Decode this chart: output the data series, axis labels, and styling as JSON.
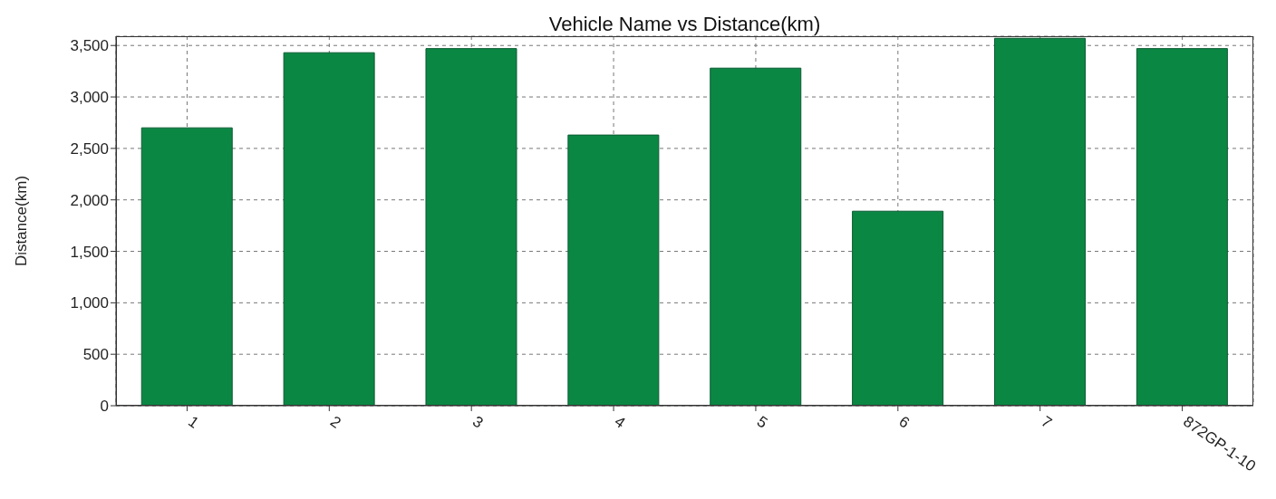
{
  "chart_data": {
    "type": "bar",
    "title": "Vehicle Name vs Distance(km)",
    "ylabel": "Distance(km)",
    "categories": [
      "1",
      "2",
      "3",
      "4",
      "5",
      "6",
      "7",
      "872GP-1-10"
    ],
    "values": [
      2700,
      3430,
      3470,
      2630,
      3280,
      1890,
      3570,
      3470
    ],
    "color": "#0b8744",
    "ylim": [
      0,
      3590
    ],
    "yticks": [
      {
        "value": 0,
        "label": "0"
      },
      {
        "value": 500,
        "label": "500"
      },
      {
        "value": 1000,
        "label": "1,000"
      },
      {
        "value": 1500,
        "label": "1,500"
      },
      {
        "value": 2000,
        "label": "2,000"
      },
      {
        "value": 2500,
        "label": "2,500"
      },
      {
        "value": 3000,
        "label": "3,000"
      },
      {
        "value": 3500,
        "label": "3,500"
      }
    ],
    "grid": true
  }
}
